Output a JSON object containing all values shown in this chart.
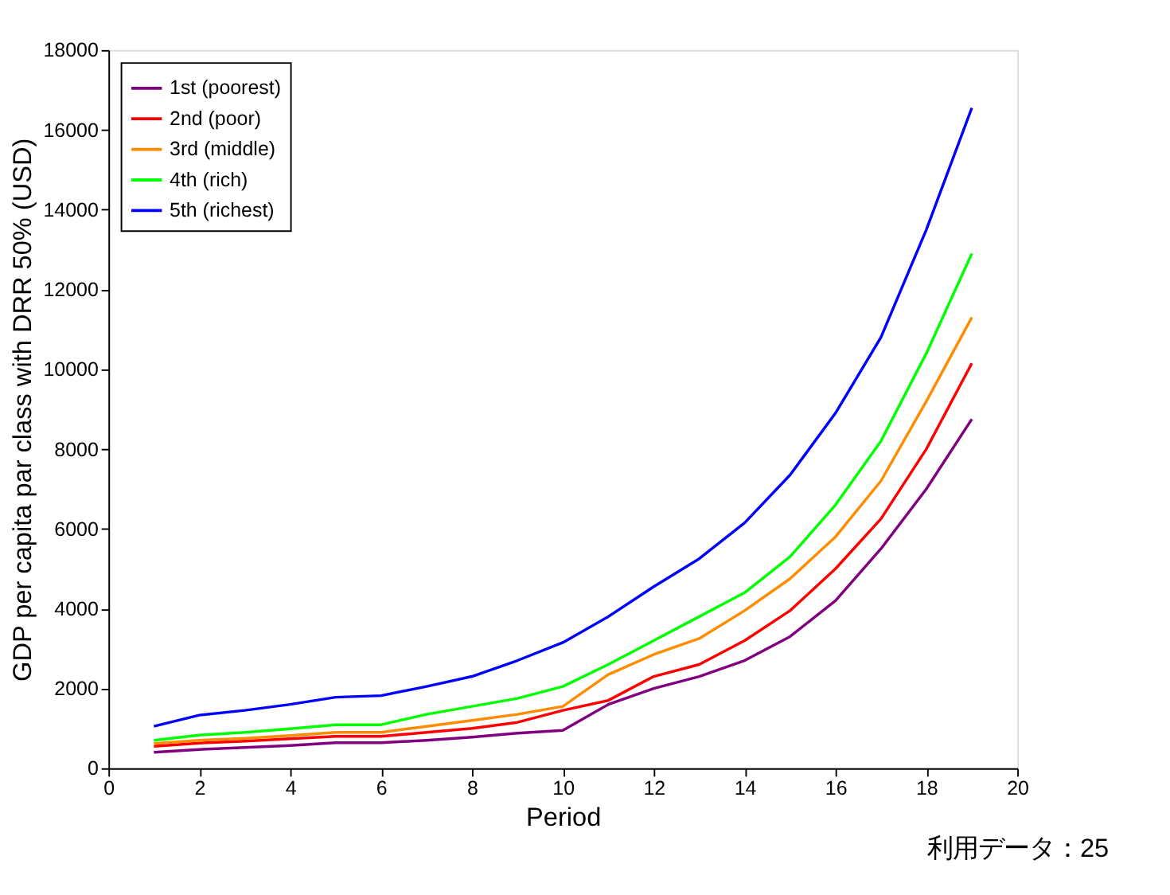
{
  "chart_data": {
    "type": "line",
    "xlabel": "Period",
    "ylabel": "GDP per capita par class with DRR 50% (USD)",
    "x": [
      1,
      2,
      3,
      4,
      5,
      6,
      7,
      8,
      9,
      10,
      11,
      12,
      13,
      14,
      15,
      16,
      17,
      18,
      19
    ],
    "series": [
      {
        "name": "1st (poorest)",
        "color": "#800080",
        "values": [
          400,
          470,
          520,
          570,
          640,
          640,
          700,
          780,
          880,
          950,
          1600,
          2000,
          2300,
          2700,
          3300,
          4200,
          5500,
          7000,
          8750
        ]
      },
      {
        "name": "2nd (poor)",
        "color": "#ff0000",
        "values": [
          550,
          630,
          680,
          740,
          800,
          800,
          900,
          1000,
          1150,
          1450,
          1700,
          2300,
          2600,
          3200,
          3950,
          5000,
          6250,
          8000,
          10150
        ]
      },
      {
        "name": "3rd (middle)",
        "color": "#ff8c00",
        "values": [
          620,
          700,
          750,
          820,
          900,
          900,
          1050,
          1200,
          1350,
          1550,
          2350,
          2850,
          3250,
          3950,
          4750,
          5800,
          7200,
          9200,
          11300
        ]
      },
      {
        "name": "4th (rich)",
        "color": "#00ff00",
        "values": [
          700,
          830,
          900,
          990,
          1090,
          1090,
          1350,
          1550,
          1750,
          2050,
          2600,
          3200,
          3800,
          4400,
          5300,
          6600,
          8200,
          10400,
          12900
        ]
      },
      {
        "name": "5th (richest)",
        "color": "#0000ff",
        "values": [
          1050,
          1330,
          1450,
          1600,
          1780,
          1820,
          2050,
          2300,
          2700,
          3150,
          3800,
          4550,
          5250,
          6150,
          7350,
          8900,
          10800,
          13500,
          16550
        ]
      }
    ],
    "xlim": [
      0,
      20
    ],
    "xticks": [
      0,
      2,
      4,
      6,
      8,
      10,
      12,
      14,
      16,
      18,
      20
    ],
    "ylim": [
      0,
      18000
    ],
    "yticks": [
      0,
      2000,
      4000,
      6000,
      8000,
      10000,
      12000,
      14000,
      16000,
      18000
    ],
    "grid": false,
    "legend": "top left",
    "marker": "none",
    "line_style": "solid",
    "annotations": [
      "利用データ：25"
    ]
  }
}
